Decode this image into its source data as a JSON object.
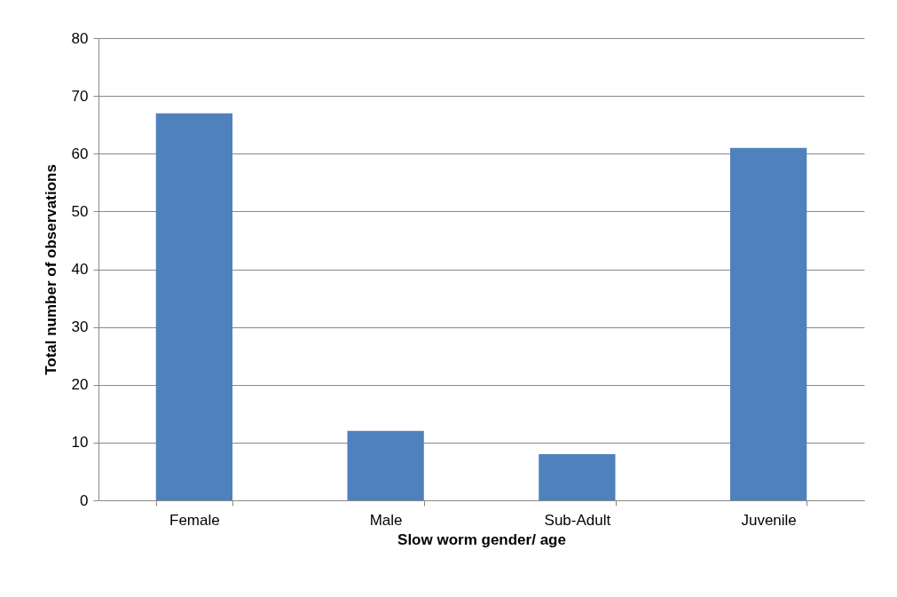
{
  "chart_data": {
    "type": "bar",
    "xlabel": "Slow worm gender/ age",
    "ylabel": "Total number of observations",
    "categories": [
      "Female",
      "Male",
      "Sub-Adult",
      "Juvenile"
    ],
    "values": [
      67,
      12,
      8,
      61
    ],
    "color": "#4f81bd",
    "ylim": [
      0,
      80
    ],
    "yticks": [
      0,
      10,
      20,
      30,
      40,
      50,
      60,
      70,
      80
    ],
    "grid": "y"
  }
}
